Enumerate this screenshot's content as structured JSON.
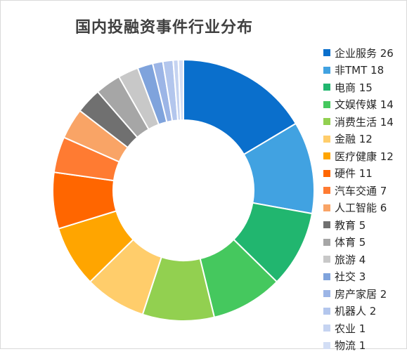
{
  "chart_data": {
    "type": "pie",
    "title": "国内投融资事件行业分布",
    "legend_position": "right",
    "categories": [
      "企业服务",
      "非TMT",
      "电商",
      "文娱传媒",
      "消费生活",
      "金融",
      "医疗健康",
      "硬件",
      "汽车交通",
      "人工智能",
      "教育",
      "体育",
      "旅游",
      "社交",
      "房产家居",
      "机器人",
      "农业",
      "物流"
    ],
    "values": [
      26,
      18,
      15,
      14,
      14,
      12,
      12,
      11,
      7,
      6,
      5,
      5,
      4,
      3,
      2,
      2,
      1,
      1
    ],
    "legend_labels": [
      "企业服务 26",
      "非TMT 18",
      "电商 15",
      "文娱传媒 14",
      "消费生活 14",
      "金融 12",
      "医疗健康 12",
      "硬件 11",
      "汽车交通 7",
      "人工智能 6",
      "教育 5",
      "体育 5",
      "旅游 4",
      "社交 3",
      "房产家居 2",
      "机器人 2",
      "农业 1",
      "物流 1"
    ],
    "colors": [
      "#0a6fcc",
      "#41a2e1",
      "#21b66f",
      "#45c85e",
      "#92d050",
      "#ffcd6b",
      "#ffa500",
      "#ff6600",
      "#ff7b32",
      "#f9a466",
      "#707070",
      "#a6a6a6",
      "#c8c8c8",
      "#7fa3dc",
      "#9cb5e6",
      "#b3c6ed",
      "#c5d3f1",
      "#d3def5"
    ]
  }
}
